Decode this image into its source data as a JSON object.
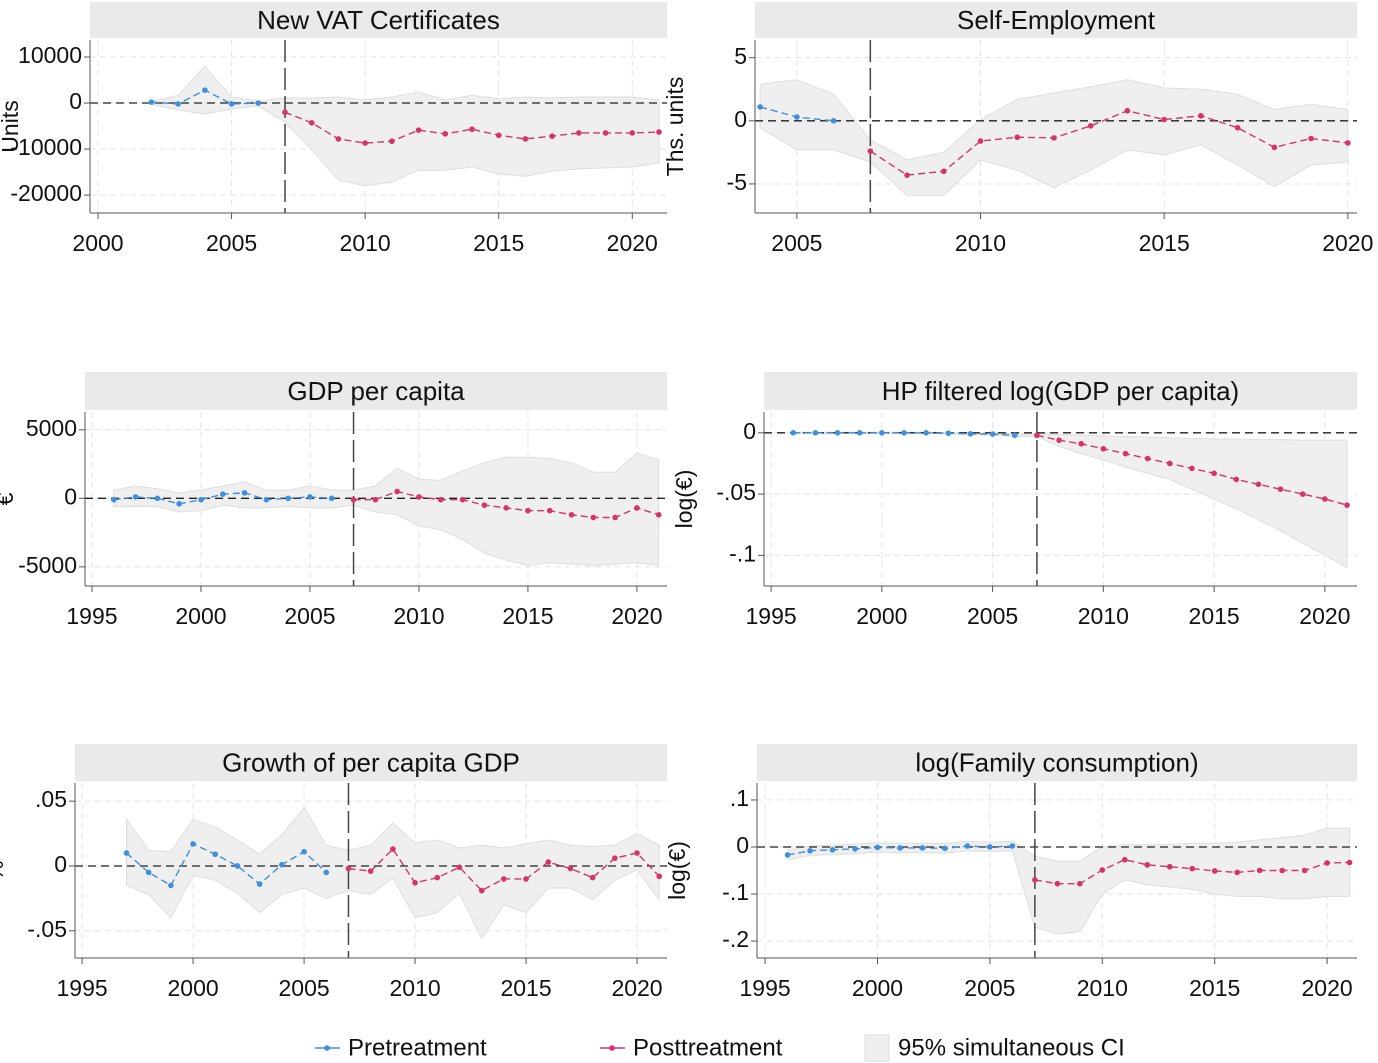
{
  "legend": [
    {
      "label": "Pretreatment",
      "color": "#3d8fe0"
    },
    {
      "label": "Posttreatment",
      "color": "#d6336c"
    },
    {
      "label": "95% simultaneous CI",
      "color": "#efefef"
    }
  ],
  "chart_data": [
    {
      "type": "line",
      "title": "New VAT Certificates",
      "y_label": "Units",
      "x": [
        2002,
        2003,
        2004,
        2005,
        2006,
        2007,
        2008,
        2009,
        2010,
        2011,
        2012,
        2013,
        2014,
        2015,
        2016,
        2017,
        2018,
        2019,
        2020,
        2021
      ],
      "series": [
        {
          "color": "#3d8fe0",
          "values": [
            200,
            -200,
            2800,
            -200,
            0,
            null,
            null,
            null,
            null,
            null,
            null,
            null,
            null,
            null,
            null,
            null,
            null,
            null,
            null,
            null
          ]
        },
        {
          "color": "#d6336c",
          "values": [
            null,
            null,
            null,
            null,
            null,
            -2000,
            -4300,
            -7800,
            -8700,
            -8300,
            -5900,
            -6700,
            -5700,
            -7000,
            -7800,
            -7200,
            -6500,
            -6500,
            -6500,
            -6300
          ]
        }
      ],
      "ci": {
        "color": "#efefef",
        "upper": [
          300,
          1700,
          8000,
          1300,
          400,
          1100,
          1100,
          1300,
          700,
          1300,
          2400,
          700,
          1700,
          900,
          1300,
          1100,
          1300,
          1300,
          1300,
          700
        ],
        "lower": [
          -300,
          -1500,
          -2400,
          -1300,
          -600,
          -4100,
          -10200,
          -16700,
          -18000,
          -17200,
          -14600,
          -14600,
          -13900,
          -15400,
          -15900,
          -14800,
          -14300,
          -14100,
          -13900,
          -13000
        ]
      },
      "xlim": [
        1999.7,
        2021.3
      ],
      "xticks": [
        2000,
        2005,
        2010,
        2015,
        2020
      ],
      "ylim": [
        -23900,
        13700
      ],
      "yticks": [
        -20000,
        -10000,
        0,
        10000
      ],
      "treatment_x": 2007,
      "reference_y": 0,
      "grid": true
    },
    {
      "type": "line",
      "title": "Self-Employment",
      "y_label": "Ths. units",
      "x": [
        2004,
        2005,
        2006,
        2007,
        2008,
        2009,
        2010,
        2011,
        2012,
        2013,
        2014,
        2015,
        2016,
        2017,
        2018,
        2019,
        2020
      ],
      "series": [
        {
          "color": "#3d8fe0",
          "values": [
            1.1,
            0.3,
            0,
            null,
            null,
            null,
            null,
            null,
            null,
            null,
            null,
            null,
            null,
            null,
            null,
            null,
            null
          ]
        },
        {
          "color": "#d6336c",
          "values": [
            null,
            null,
            null,
            -2.4,
            -4.3,
            -4.0,
            -1.6,
            -1.3,
            -1.35,
            -0.4,
            0.8,
            0.1,
            0.4,
            -0.55,
            -2.1,
            -1.4,
            -1.75
          ]
        }
      ],
      "ci": {
        "color": "#efefef",
        "upper": [
          2.9,
          3.25,
          2.1,
          -1.5,
          -3.1,
          -2.5,
          0.1,
          1.7,
          2.2,
          2.7,
          3.25,
          2.6,
          2.5,
          2.1,
          0.9,
          1.3,
          0.9
        ],
        "lower": [
          -0.55,
          -2.3,
          -2.3,
          -3.25,
          -5.9,
          -5.9,
          -3.1,
          -3.9,
          -5.3,
          -3.9,
          -2.3,
          -2.7,
          -1.9,
          -3.5,
          -5.2,
          -3.5,
          -3.25
        ]
      },
      "xlim": [
        2003.86,
        2020.25
      ],
      "xticks": [
        2005,
        2010,
        2015,
        2020
      ],
      "ylim": [
        -7.3,
        6.4
      ],
      "yticks": [
        -5,
        0,
        5
      ],
      "treatment_x": 2007,
      "reference_y": 0,
      "grid": true
    },
    {
      "type": "line",
      "title": "GDP per capita",
      "y_label": "€",
      "x": [
        1996,
        1997,
        1998,
        1999,
        2000,
        2001,
        2002,
        2003,
        2004,
        2005,
        2006,
        2007,
        2008,
        2009,
        2010,
        2011,
        2012,
        2013,
        2014,
        2015,
        2016,
        2017,
        2018,
        2019,
        2020,
        2021
      ],
      "series": [
        {
          "color": "#3d8fe0",
          "values": [
            -100,
            100,
            0,
            -400,
            -100,
            300,
            400,
            -100,
            0,
            100,
            0,
            null,
            null,
            null,
            null,
            null,
            null,
            null,
            null,
            null,
            null,
            null,
            null,
            null,
            null,
            null
          ]
        },
        {
          "color": "#d6336c",
          "values": [
            null,
            null,
            null,
            null,
            null,
            null,
            null,
            null,
            null,
            null,
            null,
            -100,
            -100,
            500,
            100,
            -100,
            -100,
            -500,
            -700,
            -900,
            -900,
            -1200,
            -1400,
            -1400,
            -700,
            -1200
          ]
        }
      ],
      "ci": {
        "color": "#efefef",
        "upper": [
          600,
          900,
          700,
          400,
          600,
          900,
          1200,
          600,
          600,
          900,
          600,
          600,
          900,
          2200,
          1400,
          1300,
          2000,
          2600,
          3000,
          3000,
          2900,
          2600,
          1900,
          1900,
          3300,
          2800
        ],
        "lower": [
          -600,
          -600,
          -600,
          -1000,
          -900,
          -500,
          -700,
          -700,
          -600,
          -700,
          -700,
          -500,
          -1000,
          -1200,
          -2000,
          -2300,
          -3000,
          -4000,
          -4500,
          -4900,
          -4700,
          -4800,
          -4900,
          -4800,
          -4700,
          -4900
        ]
      },
      "xlim": [
        1994.68,
        2021.38
      ],
      "xticks": [
        1995,
        2000,
        2005,
        2010,
        2015,
        2020
      ],
      "ylim": [
        -6400,
        6300
      ],
      "yticks": [
        -5000,
        0,
        5000
      ],
      "treatment_x": 2007,
      "reference_y": 0,
      "grid": true
    },
    {
      "type": "line",
      "title": "HP filtered log(GDP per capita)",
      "y_label": "log(€)",
      "x": [
        1996,
        1997,
        1998,
        1999,
        2000,
        2001,
        2002,
        2003,
        2004,
        2005,
        2006,
        2007,
        2008,
        2009,
        2010,
        2011,
        2012,
        2013,
        2014,
        2015,
        2016,
        2017,
        2018,
        2019,
        2020,
        2021
      ],
      "series": [
        {
          "color": "#3d8fe0",
          "values": [
            0,
            0,
            0,
            0,
            0,
            0,
            0,
            -0.0003,
            -0.0008,
            -0.001,
            -0.002,
            null,
            null,
            null,
            null,
            null,
            null,
            null,
            null,
            null,
            null,
            null,
            null,
            null,
            null,
            null
          ]
        },
        {
          "color": "#d6336c",
          "values": [
            null,
            null,
            null,
            null,
            null,
            null,
            null,
            null,
            null,
            null,
            null,
            -0.002,
            -0.006,
            -0.009,
            -0.013,
            -0.017,
            -0.021,
            -0.025,
            -0.029,
            -0.033,
            -0.038,
            -0.042,
            -0.046,
            -0.05,
            -0.054,
            -0.059
          ]
        }
      ],
      "ci": {
        "color": "#efefef",
        "upper": [
          0.0005,
          0.0005,
          0.0005,
          0.0005,
          0.0005,
          0.0005,
          0.0005,
          0.0003,
          0,
          -0.0003,
          -0.001,
          -0.001,
          -0.0015,
          -0.002,
          -0.0025,
          -0.003,
          -0.0035,
          -0.004,
          -0.0045,
          -0.005,
          -0.005,
          -0.0055,
          -0.0055,
          -0.006,
          -0.006,
          -0.006
        ],
        "lower": [
          -0.0005,
          -0.0005,
          -0.0005,
          -0.0005,
          -0.0005,
          -0.0005,
          -0.0005,
          -0.001,
          -0.0015,
          -0.002,
          -0.003,
          -0.003,
          -0.011,
          -0.017,
          -0.022,
          -0.028,
          -0.033,
          -0.038,
          -0.046,
          -0.054,
          -0.062,
          -0.071,
          -0.08,
          -0.09,
          -0.1,
          -0.11
        ]
      },
      "xlim": [
        1994.68,
        2021.45
      ],
      "xticks": [
        1995,
        2000,
        2005,
        2010,
        2015,
        2020
      ],
      "ylim": [
        -0.125,
        0.017
      ],
      "yticks": [
        {
          "value": -0.1,
          "label": "-.1"
        },
        {
          "value": -0.05,
          "label": "-.05"
        },
        0
      ],
      "treatment_x": 2007,
      "reference_y": 0,
      "grid": true
    },
    {
      "type": "line",
      "title": "Growth of per capita GDP",
      "y_label": "%",
      "x": [
        1997,
        1998,
        1999,
        2000,
        2001,
        2002,
        2003,
        2004,
        2005,
        2006,
        2007,
        2008,
        2009,
        2010,
        2011,
        2012,
        2013,
        2014,
        2015,
        2016,
        2017,
        2018,
        2019,
        2020,
        2021
      ],
      "series": [
        {
          "color": "#3d8fe0",
          "values": [
            0.01,
            -0.005,
            -0.015,
            0.017,
            0.009,
            0,
            -0.014,
            0.001,
            0.011,
            -0.005,
            null,
            null,
            null,
            null,
            null,
            null,
            null,
            null,
            null,
            null,
            null,
            null,
            null,
            null,
            null
          ]
        },
        {
          "color": "#d6336c",
          "values": [
            null,
            null,
            null,
            null,
            null,
            null,
            null,
            null,
            null,
            null,
            -0.002,
            -0.004,
            0.013,
            -0.013,
            -0.009,
            -0.001,
            -0.019,
            -0.01,
            -0.01,
            0.003,
            -0.002,
            -0.009,
            0.006,
            0.01,
            -0.008
          ]
        }
      ],
      "ci": {
        "color": "#efefef",
        "upper": [
          0.036,
          0.012,
          0.011,
          0.036,
          0.03,
          0.02,
          0.009,
          0.024,
          0.045,
          0.016,
          0.012,
          0.016,
          0.033,
          0.018,
          0.02,
          0.014,
          0.016,
          0.014,
          0.017,
          0.02,
          0.016,
          0.015,
          0.016,
          0.025,
          0.016
        ],
        "lower": [
          -0.015,
          -0.022,
          -0.04,
          -0.007,
          -0.011,
          -0.021,
          -0.036,
          -0.022,
          -0.017,
          -0.025,
          -0.019,
          -0.022,
          -0.009,
          -0.04,
          -0.036,
          -0.021,
          -0.056,
          -0.03,
          -0.036,
          -0.017,
          -0.017,
          -0.026,
          -0.011,
          -0.003,
          -0.026
        ]
      },
      "xlim": [
        1994.68,
        2021.35
      ],
      "xticks": [
        1995,
        2000,
        2005,
        2010,
        2015,
        2020
      ],
      "ylim": [
        -0.071,
        0.064
      ],
      "yticks": [
        {
          "value": -0.05,
          "label": "-.05"
        },
        0,
        {
          "value": 0.05,
          "label": ".05"
        }
      ],
      "treatment_x": 2007,
      "reference_y": 0,
      "grid": true
    },
    {
      "type": "line",
      "title": "log(Family consumption)",
      "y_label": "log(€)",
      "x": [
        1996,
        1997,
        1998,
        1999,
        2000,
        2001,
        2002,
        2003,
        2004,
        2005,
        2006,
        2007,
        2008,
        2009,
        2010,
        2011,
        2012,
        2013,
        2014,
        2015,
        2016,
        2017,
        2018,
        2019,
        2020,
        2021
      ],
      "series": [
        {
          "color": "#3d8fe0",
          "values": [
            -0.017,
            -0.008,
            -0.006,
            -0.004,
            -0.001,
            -0.002,
            -0.002,
            -0.003,
            0.002,
            0,
            0.002,
            null,
            null,
            null,
            null,
            null,
            null,
            null,
            null,
            null,
            null,
            null,
            null,
            null,
            null,
            null
          ]
        },
        {
          "color": "#d6336c",
          "values": [
            null,
            null,
            null,
            null,
            null,
            null,
            null,
            null,
            null,
            null,
            null,
            -0.07,
            -0.078,
            -0.078,
            -0.049,
            -0.027,
            -0.038,
            -0.042,
            -0.046,
            -0.051,
            -0.054,
            -0.05,
            -0.05,
            -0.05,
            -0.034,
            -0.033
          ]
        }
      ],
      "ci": {
        "color": "#efefef",
        "upper": [
          -0.007,
          0.002,
          0.004,
          0.006,
          0.009,
          0.008,
          0.008,
          0.007,
          0.012,
          0.01,
          0.012,
          -0.02,
          -0.03,
          -0.03,
          0,
          0.005,
          0.005,
          0.005,
          0.008,
          0.008,
          0.01,
          0.015,
          0.02,
          0.025,
          0.04,
          0.04
        ],
        "lower": [
          -0.027,
          -0.018,
          -0.016,
          -0.014,
          -0.011,
          -0.012,
          -0.012,
          -0.013,
          -0.008,
          -0.01,
          -0.008,
          -0.17,
          -0.185,
          -0.18,
          -0.1,
          -0.07,
          -0.08,
          -0.085,
          -0.09,
          -0.1,
          -0.105,
          -0.105,
          -0.11,
          -0.11,
          -0.105,
          -0.105
        ]
      },
      "xlim": [
        1994.64,
        2021.33
      ],
      "xticks": [
        1995,
        2000,
        2005,
        2010,
        2015,
        2020
      ],
      "ylim": [
        -0.236,
        0.136
      ],
      "yticks": [
        {
          "value": -0.2,
          "label": "-.2"
        },
        {
          "value": -0.1,
          "label": "-.1"
        },
        0,
        {
          "value": 0.1,
          "label": ".1"
        }
      ],
      "treatment_x": 2007,
      "reference_y": 0,
      "grid": true
    }
  ]
}
